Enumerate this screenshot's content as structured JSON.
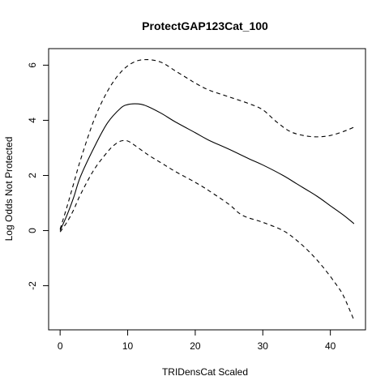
{
  "chart_data": {
    "type": "line",
    "title": "ProtectGAP123Cat_100",
    "xlabel": "TRIDensCat Scaled",
    "ylabel": "Log Odds Not Protected",
    "xlim": [
      -1.7,
      45.2
    ],
    "ylim": [
      -3.6,
      6.6
    ],
    "x_ticks": [
      0,
      10,
      20,
      30,
      40
    ],
    "y_ticks": [
      -2,
      0,
      2,
      4,
      6
    ],
    "x_tick_labels": [
      "0",
      "10",
      "20",
      "30",
      "40"
    ],
    "y_tick_labels": [
      "-2",
      "0",
      "2",
      "4",
      "6"
    ],
    "grid": false,
    "series": [
      {
        "line_style": "solid",
        "points": [
          [
            0,
            0
          ],
          [
            1,
            0.55
          ],
          [
            2,
            1.2
          ],
          [
            3,
            1.95
          ],
          [
            5,
            3.0
          ],
          [
            7,
            3.9
          ],
          [
            9,
            4.45
          ],
          [
            10,
            4.57
          ],
          [
            11,
            4.6
          ],
          [
            12,
            4.58
          ],
          [
            13,
            4.5
          ],
          [
            15,
            4.25
          ],
          [
            17,
            3.95
          ],
          [
            20,
            3.55
          ],
          [
            22,
            3.28
          ],
          [
            25,
            2.95
          ],
          [
            28,
            2.6
          ],
          [
            30,
            2.38
          ],
          [
            33,
            2.0
          ],
          [
            35,
            1.7
          ],
          [
            38,
            1.25
          ],
          [
            40,
            0.9
          ],
          [
            42,
            0.55
          ],
          [
            43.5,
            0.25
          ]
        ]
      },
      {
        "line_style": "dashed",
        "points": [
          [
            0,
            0.05
          ],
          [
            1,
            0.85
          ],
          [
            2,
            1.7
          ],
          [
            3,
            2.55
          ],
          [
            5,
            4.0
          ],
          [
            7,
            5.05
          ],
          [
            9,
            5.75
          ],
          [
            11,
            6.12
          ],
          [
            13,
            6.2
          ],
          [
            15,
            6.1
          ],
          [
            17,
            5.8
          ],
          [
            19,
            5.5
          ],
          [
            20,
            5.35
          ],
          [
            22,
            5.1
          ],
          [
            25,
            4.85
          ],
          [
            28,
            4.6
          ],
          [
            30,
            4.38
          ],
          [
            32,
            3.95
          ],
          [
            34,
            3.6
          ],
          [
            36,
            3.45
          ],
          [
            38,
            3.4
          ],
          [
            40,
            3.45
          ],
          [
            42,
            3.6
          ],
          [
            43.5,
            3.75
          ]
        ]
      },
      {
        "line_style": "dashed",
        "points": [
          [
            0,
            -0.05
          ],
          [
            1,
            0.3
          ],
          [
            2,
            0.75
          ],
          [
            3,
            1.3
          ],
          [
            5,
            2.2
          ],
          [
            7,
            2.85
          ],
          [
            8,
            3.1
          ],
          [
            9,
            3.25
          ],
          [
            10,
            3.25
          ],
          [
            11,
            3.1
          ],
          [
            13,
            2.75
          ],
          [
            15,
            2.45
          ],
          [
            17,
            2.15
          ],
          [
            20,
            1.75
          ],
          [
            22,
            1.45
          ],
          [
            25,
            0.95
          ],
          [
            27,
            0.55
          ],
          [
            30,
            0.3
          ],
          [
            33,
            0.0
          ],
          [
            35,
            -0.35
          ],
          [
            37,
            -0.8
          ],
          [
            39,
            -1.35
          ],
          [
            41,
            -2.0
          ],
          [
            42,
            -2.4
          ],
          [
            43.5,
            -3.25
          ]
        ]
      }
    ]
  }
}
